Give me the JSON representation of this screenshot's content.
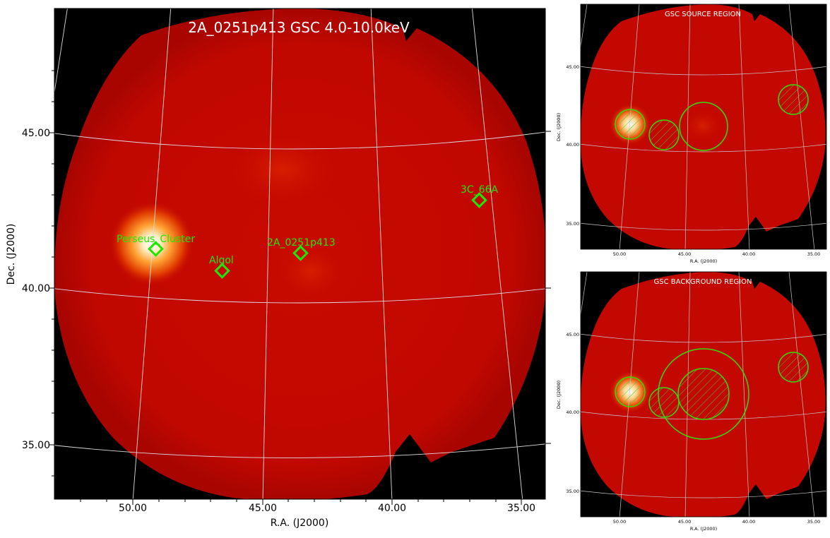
{
  "main": {
    "title": "2A_0251p413 GSC 4.0-10.0keV",
    "xlabel": "R.A. (J2000)",
    "ylabel": "Dec. (J2000)",
    "xticks": [
      "50.00",
      "45.00",
      "40.00",
      "35.00"
    ],
    "yticks": [
      "45.00",
      "40.00",
      "35.00"
    ],
    "sources": [
      {
        "label": "Perseus_Cluster"
      },
      {
        "label": "Algol"
      },
      {
        "label": "2A_0251p413"
      },
      {
        "label": "3C_66A"
      }
    ]
  },
  "source_panel": {
    "title": "GSC SOURCE REGION",
    "xlabel": "R.A. (J2000)",
    "ylabel": "Dec. (J2000)",
    "xticks": [
      "50.00",
      "45.00",
      "40.00",
      "35.00"
    ],
    "yticks": [
      "45.00",
      "40.00",
      "35.00"
    ]
  },
  "background_panel": {
    "title": "GSC BACKGROUND REGION",
    "xlabel": "R.A. (J2000)",
    "ylabel": "Dec. (J2000)",
    "xticks": [
      "50.00",
      "45.00",
      "40.00",
      "35.00"
    ],
    "yticks": [
      "45.00",
      "40.00",
      "35.00"
    ]
  },
  "colors": {
    "sky": "#c20800",
    "background": "#000000",
    "marker": "#22ee00",
    "grid": "#d8d8d8",
    "region": "#33dd00"
  }
}
